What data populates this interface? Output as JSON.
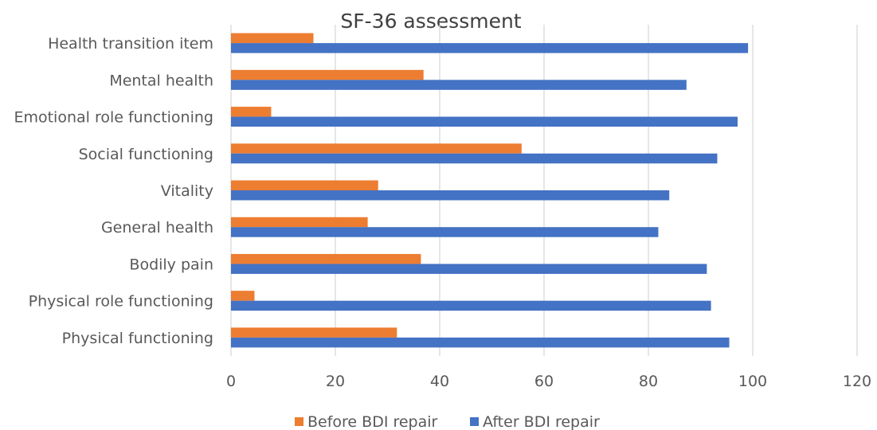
{
  "chart_data": {
    "type": "bar",
    "orientation": "horizontal",
    "title": "SF-36 assessment",
    "xlabel": "",
    "ylabel": "",
    "categories": [
      "Physical functioning",
      "Physical role functioning",
      "Bodily pain",
      "General health",
      "Vitality",
      "Social functioning",
      "Emotional role functioning",
      "Mental health",
      "Health transition item"
    ],
    "series": [
      {
        "name": "Before BDI repair",
        "color": "#ed7d31",
        "values": [
          31.8,
          4.5,
          36.4,
          26.2,
          28.2,
          55.7,
          7.7,
          36.9,
          15.8
        ]
      },
      {
        "name": "After BDI repair",
        "color": "#4472c4",
        "values": [
          95.5,
          92.0,
          91.2,
          81.9,
          84.0,
          93.2,
          97.1,
          87.3,
          99.1
        ]
      }
    ],
    "xlim": [
      0,
      120
    ],
    "xticks": [
      0,
      20,
      40,
      60,
      80,
      100,
      120
    ],
    "grid": true,
    "legend_position": "bottom"
  }
}
